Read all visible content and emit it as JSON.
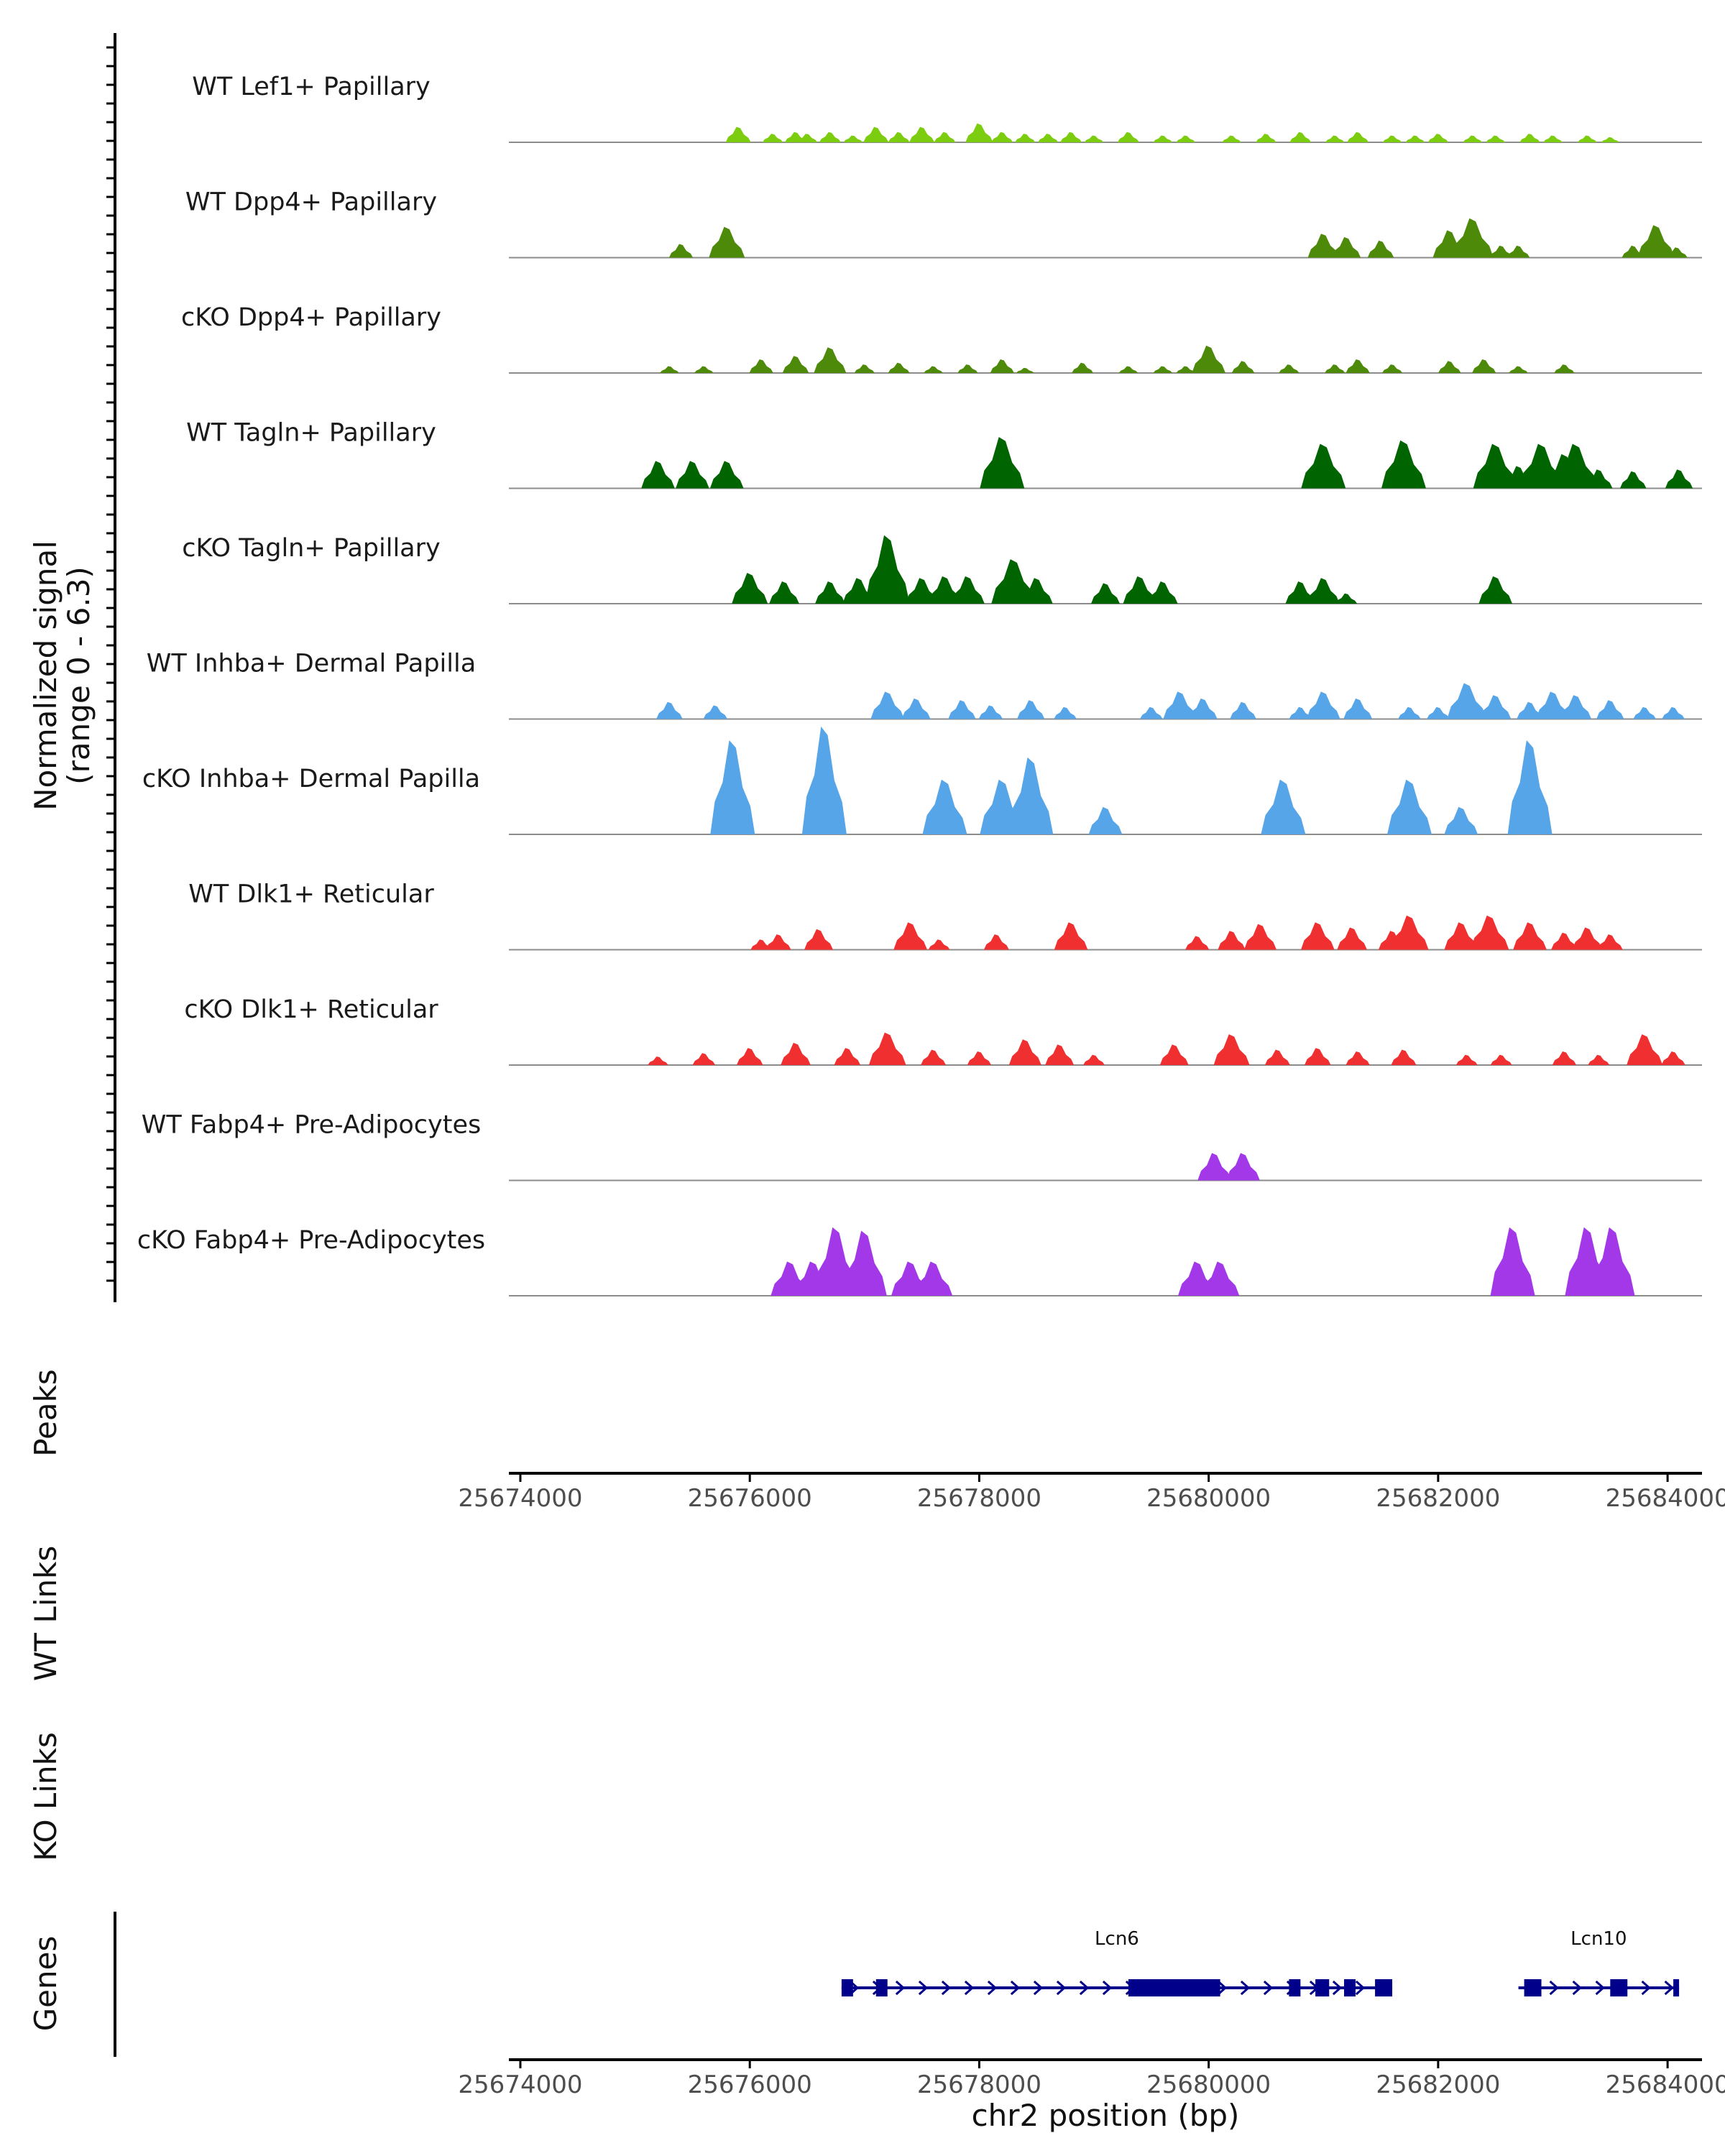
{
  "chart_data": {
    "type": "genome_browser_coverage",
    "xlabel": "chr2 position (bp)",
    "xlim": [
      25673900,
      25684300
    ],
    "x_ticks": [
      25674000,
      25676000,
      25678000,
      25680000,
      25682000,
      25684000
    ],
    "y_axis_title_line1": "Normalized signal",
    "y_axis_title_line2": "(range 0 - 6.3)",
    "ylim": [
      0,
      6.3
    ],
    "track_labels": {
      "peaks": "Peaks",
      "wt_links": "WT Links",
      "ko_links": "KO Links",
      "genes": "Genes"
    },
    "tracks": [
      {
        "name": "WT Lef1+ Papillary",
        "color": "#7ccd10",
        "peaks": [
          [
            25675900,
            0.9
          ],
          [
            25676200,
            0.5
          ],
          [
            25676400,
            0.6
          ],
          [
            25676500,
            0.5
          ],
          [
            25676700,
            0.6
          ],
          [
            25676900,
            0.4
          ],
          [
            25677100,
            0.9
          ],
          [
            25677300,
            0.6
          ],
          [
            25677500,
            0.9
          ],
          [
            25677700,
            0.6
          ],
          [
            25678000,
            1.1
          ],
          [
            25678200,
            0.6
          ],
          [
            25678400,
            0.5
          ],
          [
            25678600,
            0.5
          ],
          [
            25678800,
            0.6
          ],
          [
            25679000,
            0.4
          ],
          [
            25679300,
            0.6
          ],
          [
            25679600,
            0.4
          ],
          [
            25679800,
            0.4
          ],
          [
            25680200,
            0.4
          ],
          [
            25680500,
            0.5
          ],
          [
            25680800,
            0.6
          ],
          [
            25681100,
            0.4
          ],
          [
            25681300,
            0.6
          ],
          [
            25681600,
            0.4
          ],
          [
            25681800,
            0.4
          ],
          [
            25682000,
            0.5
          ],
          [
            25682300,
            0.4
          ],
          [
            25682500,
            0.4
          ],
          [
            25682800,
            0.5
          ],
          [
            25683000,
            0.4
          ],
          [
            25683300,
            0.4
          ],
          [
            25683500,
            0.3
          ]
        ]
      },
      {
        "name": "WT Dpp4+ Papillary",
        "color": "#4e8a0a",
        "peaks": [
          [
            25675400,
            0.8
          ],
          [
            25675800,
            1.8
          ],
          [
            25681000,
            1.4
          ],
          [
            25681200,
            1.2
          ],
          [
            25681500,
            1.0
          ],
          [
            25682100,
            1.6
          ],
          [
            25682300,
            2.3
          ],
          [
            25682550,
            0.7
          ],
          [
            25682700,
            0.7
          ],
          [
            25683700,
            0.7
          ],
          [
            25683900,
            1.9
          ],
          [
            25684080,
            0.6
          ]
        ]
      },
      {
        "name": "cKO Dpp4+ Papillary",
        "color": "#4e8a0a",
        "peaks": [
          [
            25675300,
            0.4
          ],
          [
            25675600,
            0.4
          ],
          [
            25676100,
            0.8
          ],
          [
            25676400,
            1.0
          ],
          [
            25676700,
            1.5
          ],
          [
            25677000,
            0.5
          ],
          [
            25677300,
            0.6
          ],
          [
            25677600,
            0.4
          ],
          [
            25677900,
            0.5
          ],
          [
            25678200,
            0.8
          ],
          [
            25678400,
            0.3
          ],
          [
            25678900,
            0.6
          ],
          [
            25679300,
            0.4
          ],
          [
            25679600,
            0.4
          ],
          [
            25679800,
            0.4
          ],
          [
            25680000,
            1.6
          ],
          [
            25680300,
            0.7
          ],
          [
            25680700,
            0.5
          ],
          [
            25681100,
            0.5
          ],
          [
            25681300,
            0.8
          ],
          [
            25681600,
            0.5
          ],
          [
            25682100,
            0.7
          ],
          [
            25682400,
            0.8
          ],
          [
            25682700,
            0.4
          ],
          [
            25683100,
            0.5
          ]
        ]
      },
      {
        "name": "WT Tagln+ Papillary",
        "color": "#006400",
        "peaks": [
          [
            25675200,
            1.6
          ],
          [
            25675500,
            1.6
          ],
          [
            25675800,
            1.6
          ],
          [
            25678200,
            3.0
          ],
          [
            25681000,
            2.6
          ],
          [
            25681700,
            2.8
          ],
          [
            25682500,
            2.6
          ],
          [
            25682700,
            1.3
          ],
          [
            25682900,
            2.6
          ],
          [
            25683100,
            2.0
          ],
          [
            25683200,
            2.6
          ],
          [
            25683400,
            1.1
          ],
          [
            25683700,
            1.0
          ],
          [
            25684100,
            1.1
          ]
        ]
      },
      {
        "name": "cKO Tagln+ Papillary",
        "color": "#006400",
        "peaks": [
          [
            25676000,
            1.8
          ],
          [
            25676300,
            1.3
          ],
          [
            25676700,
            1.3
          ],
          [
            25676950,
            1.5
          ],
          [
            25677200,
            4.0
          ],
          [
            25677500,
            1.5
          ],
          [
            25677700,
            1.6
          ],
          [
            25677900,
            1.6
          ],
          [
            25678300,
            2.6
          ],
          [
            25678500,
            1.5
          ],
          [
            25679100,
            1.2
          ],
          [
            25679400,
            1.6
          ],
          [
            25679600,
            1.3
          ],
          [
            25680800,
            1.3
          ],
          [
            25681000,
            1.5
          ],
          [
            25681200,
            0.6
          ],
          [
            25682500,
            1.6
          ]
        ]
      },
      {
        "name": "WT Inhba+ Dermal Papilla",
        "color": "#56a5e8",
        "peaks": [
          [
            25675300,
            1.0
          ],
          [
            25675700,
            0.8
          ],
          [
            25677200,
            1.6
          ],
          [
            25677450,
            1.2
          ],
          [
            25677850,
            1.1
          ],
          [
            25678100,
            0.8
          ],
          [
            25678450,
            1.1
          ],
          [
            25678750,
            0.7
          ],
          [
            25679500,
            0.7
          ],
          [
            25679750,
            1.6
          ],
          [
            25679950,
            1.2
          ],
          [
            25680300,
            1.0
          ],
          [
            25680800,
            0.7
          ],
          [
            25681000,
            1.6
          ],
          [
            25681300,
            1.2
          ],
          [
            25681750,
            0.7
          ],
          [
            25682000,
            0.7
          ],
          [
            25682250,
            2.1
          ],
          [
            25682500,
            1.4
          ],
          [
            25682800,
            1.0
          ],
          [
            25683000,
            1.6
          ],
          [
            25683200,
            1.4
          ],
          [
            25683500,
            1.1
          ],
          [
            25683800,
            0.7
          ],
          [
            25684050,
            0.7
          ]
        ]
      },
      {
        "name": "cKO Inhba+ Dermal Papilla",
        "color": "#56a5e8",
        "peaks": [
          [
            25675850,
            5.5
          ],
          [
            25676650,
            6.3
          ],
          [
            25677700,
            3.2
          ],
          [
            25678200,
            3.2
          ],
          [
            25678450,
            4.5
          ],
          [
            25679100,
            1.6
          ],
          [
            25680650,
            3.2
          ],
          [
            25681750,
            3.2
          ],
          [
            25682200,
            1.6
          ],
          [
            25682800,
            5.5
          ]
        ]
      },
      {
        "name": "WT Dlk1+ Reticular",
        "color": "#f03030",
        "peaks": [
          [
            25676100,
            0.6
          ],
          [
            25676250,
            0.9
          ],
          [
            25676600,
            1.2
          ],
          [
            25677400,
            1.6
          ],
          [
            25677650,
            0.6
          ],
          [
            25678150,
            0.9
          ],
          [
            25678800,
            1.6
          ],
          [
            25679900,
            0.8
          ],
          [
            25680200,
            1.1
          ],
          [
            25680450,
            1.5
          ],
          [
            25680950,
            1.6
          ],
          [
            25681250,
            1.3
          ],
          [
            25681600,
            1.1
          ],
          [
            25681750,
            2.0
          ],
          [
            25682200,
            1.6
          ],
          [
            25682450,
            2.0
          ],
          [
            25682800,
            1.6
          ],
          [
            25683100,
            1.0
          ],
          [
            25683300,
            1.3
          ],
          [
            25683500,
            0.9
          ]
        ]
      },
      {
        "name": "cKO Dlk1+ Reticular",
        "color": "#f03030",
        "peaks": [
          [
            25675200,
            0.5
          ],
          [
            25675600,
            0.7
          ],
          [
            25676000,
            1.0
          ],
          [
            25676400,
            1.3
          ],
          [
            25676850,
            1.0
          ],
          [
            25677200,
            1.9
          ],
          [
            25677600,
            0.9
          ],
          [
            25678000,
            0.8
          ],
          [
            25678400,
            1.5
          ],
          [
            25678700,
            1.2
          ],
          [
            25679000,
            0.6
          ],
          [
            25679700,
            1.2
          ],
          [
            25680200,
            1.8
          ],
          [
            25680600,
            0.9
          ],
          [
            25680950,
            1.0
          ],
          [
            25681300,
            0.8
          ],
          [
            25681700,
            0.9
          ],
          [
            25682250,
            0.6
          ],
          [
            25682550,
            0.6
          ],
          [
            25683100,
            0.8
          ],
          [
            25683400,
            0.6
          ],
          [
            25683800,
            1.8
          ],
          [
            25684050,
            0.8
          ]
        ]
      },
      {
        "name": "WT Fabp4+ Pre-Adipocytes",
        "color": "#a238e8",
        "peaks": [
          [
            25680050,
            1.6
          ],
          [
            25680300,
            1.6
          ]
        ]
      },
      {
        "name": "cKO Fabp4+ Pre-Adipocytes",
        "color": "#a238e8",
        "peaks": [
          [
            25676350,
            2.0
          ],
          [
            25676550,
            2.0
          ],
          [
            25676750,
            4.0
          ],
          [
            25677000,
            3.8
          ],
          [
            25677400,
            2.0
          ],
          [
            25677600,
            2.0
          ],
          [
            25679900,
            2.0
          ],
          [
            25680100,
            2.0
          ],
          [
            25682650,
            4.0
          ],
          [
            25683300,
            4.0
          ],
          [
            25683520,
            4.0
          ]
        ]
      }
    ],
    "genes": [
      {
        "name": "Lcn6",
        "strand": "+",
        "start": 25676800,
        "end": 25681600,
        "exons": [
          [
            25676800,
            25676900
          ],
          [
            25677100,
            25677200
          ],
          [
            25679300,
            25680100
          ],
          [
            25680700,
            25680800
          ],
          [
            25680930,
            25681050
          ],
          [
            25681180,
            25681280
          ],
          [
            25681450,
            25681600
          ]
        ]
      },
      {
        "name": "Lcn10",
        "strand": "+",
        "start": 25682700,
        "end": 25684100,
        "exons": [
          [
            25682750,
            25682900
          ],
          [
            25683500,
            25683650
          ],
          [
            25684050,
            25684100
          ]
        ]
      }
    ]
  }
}
